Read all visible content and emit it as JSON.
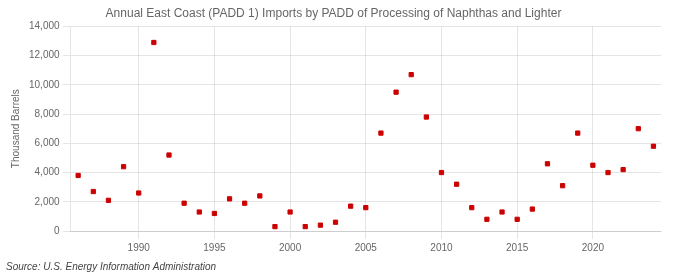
{
  "chart_data": {
    "type": "scatter",
    "title": "Annual East Coast (PADD 1) Imports by PADD of Processing of Naphthas and Lighter",
    "ylabel": "Thousand Barrels",
    "annotations": [
      "Source: U.S. Energy Information Administration"
    ],
    "color": "#cc0000",
    "marker": "square",
    "grid": true,
    "xlim": [
      1985.5,
      2024.5
    ],
    "ylim": [
      0,
      14000
    ],
    "xticks": [
      1990,
      1995,
      2000,
      2005,
      2010,
      2015,
      2020
    ],
    "yticks": [
      0,
      {
        "value": 2000,
        "label": "2,000"
      },
      {
        "value": 4000,
        "label": "4,000"
      },
      {
        "value": 6000,
        "label": "6,000"
      },
      {
        "value": 8000,
        "label": "8,000"
      },
      {
        "value": 10000,
        "label": "10,000"
      },
      {
        "value": 12000,
        "label": "12,000"
      },
      {
        "value": 14000,
        "label": "14,000"
      }
    ],
    "x": [
      1986,
      1987,
      1988,
      1989,
      1990,
      1991,
      1992,
      1993,
      1994,
      1995,
      1996,
      1997,
      1998,
      1999,
      2000,
      2001,
      2002,
      2003,
      2004,
      2005,
      2006,
      2007,
      2008,
      2009,
      2010,
      2011,
      2012,
      2013,
      2014,
      2015,
      2016,
      2017,
      2018,
      2019,
      2020,
      2021,
      2022,
      2023,
      2024
    ],
    "values": [
      3800,
      2700,
      2100,
      4400,
      2600,
      12900,
      5200,
      1900,
      1300,
      1200,
      2200,
      1900,
      2400,
      300,
      1300,
      300,
      400,
      600,
      1700,
      1600,
      6700,
      9500,
      10700,
      7800,
      4000,
      3200,
      1600,
      800,
      1300,
      800,
      1500,
      4600,
      3100,
      6700,
      4500,
      4000,
      4200,
      7000,
      5800
    ]
  }
}
